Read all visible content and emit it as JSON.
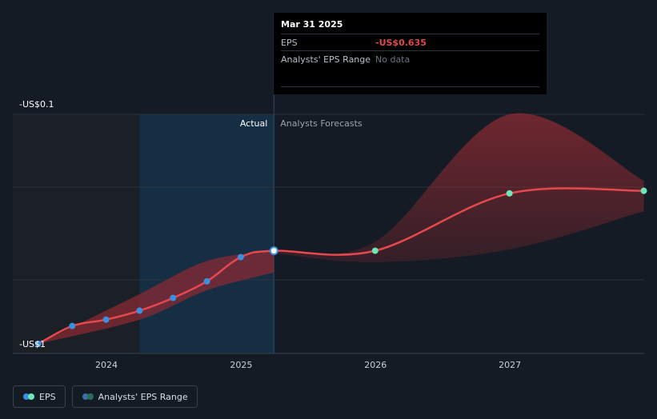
{
  "chart_data": {
    "type": "line",
    "y_axis_labels": [
      "-US$0.1",
      "-US$1"
    ],
    "x_ticks": [
      "2024",
      "2025",
      "2026",
      "2027"
    ],
    "region_labels": {
      "actual": "Actual",
      "forecast": "Analysts Forecasts"
    },
    "series": [
      {
        "name": "EPS",
        "color": "#e5484d",
        "points": [
          {
            "x": "2023-06-30",
            "y": -1.0
          },
          {
            "x": "2023-09-30",
            "y": -0.93
          },
          {
            "x": "2023-12-31",
            "y": -0.905
          },
          {
            "x": "2024-03-31",
            "y": -0.87
          },
          {
            "x": "2024-06-30",
            "y": -0.82
          },
          {
            "x": "2024-09-30",
            "y": -0.755
          },
          {
            "x": "2024-12-31",
            "y": -0.66
          },
          {
            "x": "2025-03-31",
            "y": -0.635
          },
          {
            "x": "2025-12-31",
            "y": -0.635
          },
          {
            "x": "2026-12-31",
            "y": -0.41
          },
          {
            "x": "2027-12-31",
            "y": -0.4
          }
        ]
      }
    ],
    "range_band": {
      "name": "Analysts' EPS Range",
      "actual": {
        "upper": [
          {
            "x": "2023-06-30",
            "y": -1.0
          },
          {
            "x": "2024-03-31",
            "y": -0.805
          },
          {
            "x": "2024-09-30",
            "y": -0.675
          },
          {
            "x": "2025-03-31",
            "y": -0.635
          }
        ],
        "lower": [
          {
            "x": "2023-06-30",
            "y": -1.0
          },
          {
            "x": "2024-03-31",
            "y": -0.905
          },
          {
            "x": "2024-09-30",
            "y": -0.79
          },
          {
            "x": "2025-03-31",
            "y": -0.72
          }
        ]
      },
      "forecast": {
        "upper": [
          {
            "x": "2025-03-31",
            "y": -0.635
          },
          {
            "x": "2025-12-31",
            "y": -0.6
          },
          {
            "x": "2026-12-31",
            "y": -0.1
          },
          {
            "x": "2027-12-31",
            "y": -0.36
          }
        ],
        "lower": [
          {
            "x": "2025-03-31",
            "y": -0.645
          },
          {
            "x": "2025-12-31",
            "y": -0.68
          },
          {
            "x": "2026-12-31",
            "y": -0.63
          },
          {
            "x": "2027-12-31",
            "y": -0.48
          }
        ]
      }
    },
    "colors": {
      "background": "#151b24",
      "past_band": "#1b1f26",
      "actual_band": "#16314a",
      "eps_line": "#e5484d",
      "range_fill": "#8e2a32",
      "actual_point": "#3b8fe0",
      "forecast_point": "#6ee7b7",
      "grid": "#2b323c"
    }
  },
  "tooltip": {
    "date": "Mar 31 2025",
    "rows": [
      {
        "label": "EPS",
        "value": "-US$0.635"
      },
      {
        "label": "Analysts' EPS Range",
        "value": "No data"
      }
    ]
  },
  "legend": {
    "items": [
      {
        "label": "EPS",
        "colors": [
          "#3b8fe0",
          "#6ee7b7"
        ]
      },
      {
        "label": "Analysts' EPS Range",
        "colors": [
          "#3b6ea8",
          "#2f6b5b"
        ]
      }
    ]
  }
}
